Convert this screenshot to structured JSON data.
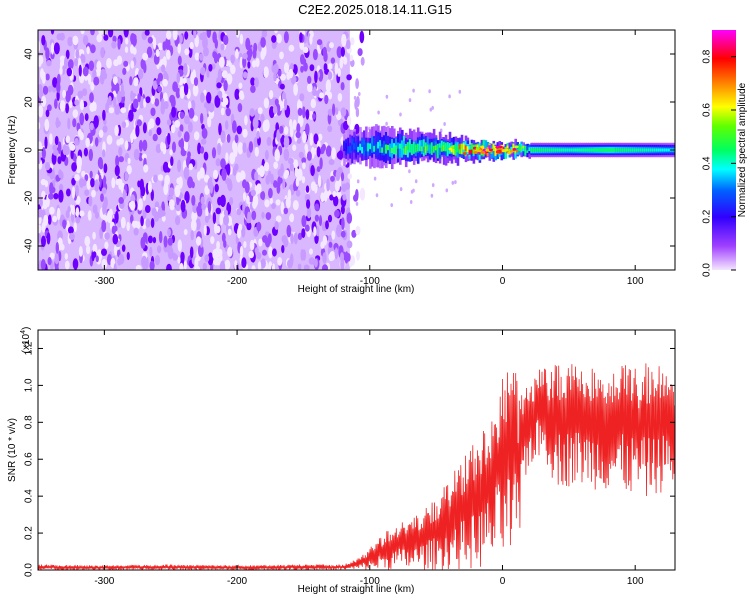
{
  "figure": {
    "title": "C2E2.2025.018.14.11.G15"
  },
  "chart_data": [
    {
      "type": "heatmap",
      "name": "spectrogram",
      "title": "C2E2.2025.018.14.11.G15",
      "xlabel": "Height of straight line (km)",
      "ylabel": "Frequency (Hz)",
      "xlim": [
        -350,
        130
      ],
      "ylim": [
        -50,
        50
      ],
      "xticks": [
        -300,
        -200,
        -100,
        0,
        100
      ],
      "yticks": [
        -40,
        -20,
        0,
        20,
        40
      ],
      "noise_region": {
        "x_range": [
          -350,
          -115
        ],
        "description_value": "broadband low amplitude (~0.1-0.2)"
      },
      "signal_band": {
        "x": [
          -120,
          -100,
          -80,
          -60,
          -40,
          -20,
          0,
          20,
          50,
          80,
          110,
          130
        ],
        "center_hz": [
          1,
          1,
          1,
          1,
          0.5,
          0,
          0,
          0,
          0,
          0,
          0,
          0
        ],
        "half_width_hz": [
          6,
          7,
          7,
          6,
          5,
          4,
          3,
          3,
          3,
          3,
          3,
          3
        ],
        "peak_amplitude": [
          0.3,
          0.4,
          0.5,
          0.5,
          0.6,
          0.8,
          0.85,
          0.5,
          0.45,
          0.5,
          0.45,
          0.4
        ]
      },
      "colorbar": {
        "label": "Normalized spectral amplitude",
        "range": [
          0.0,
          0.9
        ],
        "ticks": [
          0.0,
          0.2,
          0.4,
          0.6,
          0.8
        ],
        "tick_labels": [
          "0.0",
          "0.2",
          "0.4",
          "0.6",
          "0.8"
        ],
        "colormap": [
          "#f5e6ff",
          "#8000ff",
          "#0000ff",
          "#00ffff",
          "#00ff00",
          "#ffff00",
          "#ff8000",
          "#ff0000",
          "#ff00ff"
        ]
      }
    },
    {
      "type": "line",
      "name": "snr",
      "xlabel": "Height of straight line (km)",
      "ylabel": "SNR (10 * v/v)",
      "yscale_label": "(x10",
      "yscale_exp": "4",
      "yscale_close": ")",
      "xlim": [
        -350,
        130
      ],
      "ylim": [
        0,
        1.3
      ],
      "xticks": [
        -300,
        -200,
        -100,
        0,
        100
      ],
      "yticks": [
        0.0,
        0.2,
        0.4,
        0.6,
        0.8,
        1.0,
        1.2
      ],
      "ytick_labels": [
        "0.0",
        "0.2",
        "0.4",
        "0.6",
        "0.8",
        "1.0",
        "1.2"
      ],
      "color": "#ee2222",
      "envelope": {
        "x": [
          -350,
          -300,
          -250,
          -200,
          -150,
          -120,
          -110,
          -100,
          -90,
          -80,
          -70,
          -60,
          -50,
          -40,
          -30,
          -20,
          -10,
          -5,
          0,
          5,
          8,
          10,
          12,
          15,
          20,
          30,
          40,
          60,
          80,
          100,
          110,
          120,
          130
        ],
        "lower": [
          0.0,
          0.0,
          0.0,
          0.0,
          0.0,
          0.0,
          0.0,
          0.0,
          0.0,
          0.0,
          0.0,
          0.0,
          0.0,
          0.0,
          0.0,
          0.0,
          0.02,
          0.05,
          0.05,
          0.05,
          0.0,
          0.0,
          0.0,
          0.45,
          0.55,
          0.62,
          0.45,
          0.45,
          0.42,
          0.4,
          0.38,
          0.42,
          0.45
        ],
        "upper": [
          0.03,
          0.025,
          0.03,
          0.025,
          0.03,
          0.03,
          0.06,
          0.12,
          0.2,
          0.26,
          0.27,
          0.33,
          0.4,
          0.5,
          0.6,
          0.7,
          0.85,
          0.95,
          1.05,
          1.1,
          1.18,
          1.27,
          0.95,
          0.95,
          1.05,
          1.1,
          1.13,
          1.15,
          1.14,
          1.13,
          1.13,
          1.12,
          1.12
        ]
      }
    }
  ]
}
